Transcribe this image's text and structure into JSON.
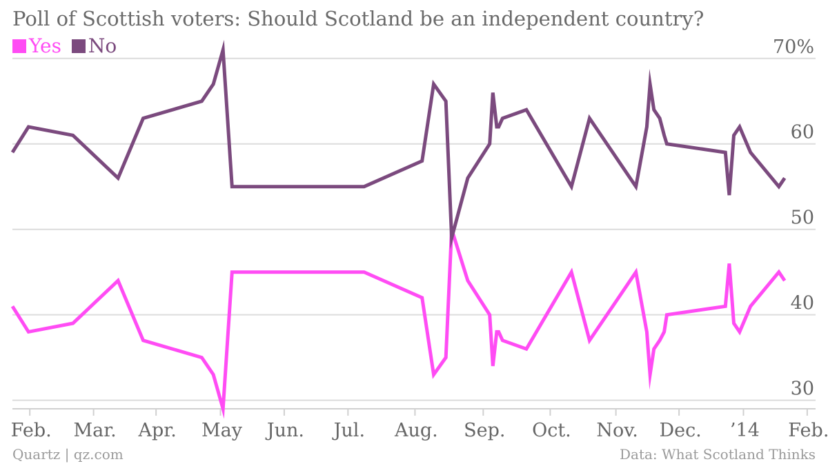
{
  "title": "Poll of Scottish voters: Should Scotland be an independent country?",
  "legend": [
    {
      "label": "Yes",
      "color": "#ff4cf4"
    },
    {
      "label": "No",
      "color": "#7b4a7e"
    }
  ],
  "footer": {
    "left": "Quartz | qz.com",
    "right": "Data: What Scotland Thinks"
  },
  "chart_data": {
    "type": "line",
    "title": "Poll of Scottish voters: Should Scotland be an independent country?",
    "xlabel": "",
    "ylabel": "",
    "ylim": [
      29,
      72
    ],
    "xlim": [
      0,
      12.47
    ],
    "y_ticks": [
      30,
      40,
      50,
      60,
      70
    ],
    "y_tick_labels": [
      "30",
      "40",
      "50",
      "60",
      "70%"
    ],
    "x_ticks": [
      0.27,
      1.26,
      2.23,
      3.23,
      4.22,
      5.21,
      6.25,
      7.31,
      8.35,
      9.37,
      10.35,
      11.35,
      12.34
    ],
    "x_tick_labels": [
      "Feb.",
      "Mar.",
      "Apr.",
      "May",
      "Jun.",
      "Jul.",
      "Aug.",
      "Sep.",
      "Oct.",
      "Nov.",
      "Dec.",
      "’14",
      "Feb."
    ],
    "grid": true,
    "legend_position": "top-left",
    "x_note": "x values are months elapsed from the start of the period (0 = mid-January, label 'Feb.' ≈ start of February)",
    "series": [
      {
        "name": "Yes",
        "color": "#ff4cf4",
        "x": [
          0.0,
          0.25,
          0.94,
          1.64,
          2.03,
          2.94,
          3.12,
          3.27,
          3.41,
          5.46,
          6.36,
          6.54,
          6.73,
          6.82,
          7.07,
          7.41,
          7.46,
          7.52,
          7.55,
          7.61,
          7.98,
          8.68,
          8.96,
          9.68,
          9.85,
          9.9,
          9.96,
          10.05,
          10.12,
          10.16,
          11.07,
          11.13,
          11.2,
          11.29,
          11.46,
          11.9,
          11.99
        ],
        "values": [
          41,
          38,
          39,
          44,
          37,
          35,
          33,
          29,
          45,
          45,
          42,
          33,
          35,
          50,
          44,
          40,
          34,
          38,
          38,
          37,
          36,
          45,
          37,
          45,
          38,
          33,
          36,
          37,
          38,
          40,
          41,
          46,
          39,
          38,
          41,
          45,
          44
        ]
      },
      {
        "name": "No",
        "color": "#7b4a7e",
        "x": [
          0.0,
          0.25,
          0.94,
          1.64,
          2.03,
          2.94,
          3.12,
          3.27,
          3.41,
          5.46,
          6.36,
          6.54,
          6.73,
          6.82,
          7.07,
          7.41,
          7.46,
          7.52,
          7.55,
          7.61,
          7.98,
          8.68,
          8.96,
          9.68,
          9.85,
          9.9,
          9.96,
          10.05,
          10.12,
          10.16,
          11.07,
          11.13,
          11.2,
          11.29,
          11.46,
          11.9,
          11.99
        ],
        "values": [
          59,
          62,
          61,
          56,
          63,
          65,
          67,
          71,
          55,
          55,
          58,
          67,
          65,
          49,
          56,
          60,
          66,
          62,
          62,
          63,
          64,
          55,
          63,
          55,
          62,
          67,
          64,
          63,
          61,
          60,
          59,
          54,
          61,
          62,
          59,
          55,
          56
        ]
      }
    ]
  }
}
